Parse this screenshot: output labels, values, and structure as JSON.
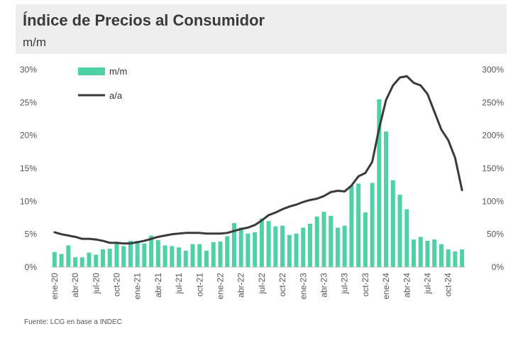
{
  "header": {
    "title": "Índice de Precios al Consumidor",
    "subtitle": "m/m"
  },
  "footer": {
    "source": "Fuente: LCG en base a INDEC"
  },
  "colors": {
    "bar": "#4fd1a5",
    "line": "#3a3a3a",
    "header_bg": "#eeeeee"
  },
  "chart_data": {
    "type": "bar+line",
    "title": "Índice de Precios al Consumidor",
    "subtitle": "m/m",
    "categories": [
      "ene-20",
      "feb-20",
      "mar-20",
      "abr-20",
      "may-20",
      "jun-20",
      "jul-20",
      "ago-20",
      "sep-20",
      "oct-20",
      "nov-20",
      "dic-20",
      "ene-21",
      "feb-21",
      "mar-21",
      "abr-21",
      "may-21",
      "jun-21",
      "jul-21",
      "ago-21",
      "sep-21",
      "oct-21",
      "nov-21",
      "dic-21",
      "ene-22",
      "feb-22",
      "mar-22",
      "abr-22",
      "may-22",
      "jun-22",
      "jul-22",
      "ago-22",
      "sep-22",
      "oct-22",
      "nov-22",
      "dic-22",
      "ene-23",
      "feb-23",
      "mar-23",
      "abr-23",
      "may-23",
      "jun-23",
      "jul-23",
      "ago-23",
      "sep-23",
      "oct-23",
      "nov-23",
      "dic-23",
      "ene-24",
      "feb-24",
      "mar-24",
      "abr-24",
      "may-24",
      "jun-24",
      "jul-24",
      "ago-24",
      "sep-24",
      "oct-24",
      "nov-24",
      "dic-24"
    ],
    "tick_labels": [
      "ene-20",
      "abr-20",
      "jul-20",
      "oct-20",
      "ene-21",
      "abr-21",
      "jul-21",
      "oct-21",
      "ene-22",
      "abr-22",
      "jul-22",
      "oct-22",
      "ene-23",
      "abr-23",
      "jul-23",
      "oct-23",
      "ene-24",
      "abr-24",
      "jul-24",
      "oct-24"
    ],
    "series": [
      {
        "name": "m/m",
        "type": "bar",
        "axis": "left",
        "values": [
          2.3,
          2.0,
          3.3,
          1.5,
          1.5,
          2.2,
          1.9,
          2.7,
          2.8,
          3.8,
          3.2,
          4.0,
          4.0,
          3.6,
          4.8,
          4.1,
          3.3,
          3.2,
          3.0,
          2.5,
          3.5,
          3.5,
          2.5,
          3.8,
          3.9,
          4.7,
          6.7,
          6.0,
          5.1,
          5.3,
          7.4,
          7.0,
          6.2,
          6.3,
          4.9,
          5.1,
          6.0,
          6.6,
          7.7,
          8.4,
          7.8,
          6.0,
          6.3,
          12.4,
          12.7,
          8.3,
          12.8,
          25.5,
          20.6,
          13.2,
          11.0,
          8.8,
          4.2,
          4.6,
          4.0,
          4.2,
          3.5,
          2.7,
          2.4,
          2.7
        ]
      },
      {
        "name": "a/a",
        "type": "line",
        "axis": "right",
        "values": [
          53,
          50,
          48,
          46,
          43,
          43,
          42,
          40,
          37,
          37,
          36,
          36,
          38,
          40,
          43,
          46,
          48,
          50,
          51,
          52,
          52,
          52,
          51,
          51,
          51,
          52,
          55,
          58,
          60,
          64,
          71,
          79,
          83,
          88,
          92,
          95,
          99,
          102,
          104,
          108,
          114,
          116,
          115,
          124,
          138,
          143,
          160,
          211,
          254,
          276,
          288,
          290,
          280,
          276,
          263,
          236,
          209,
          193,
          166,
          117
        ]
      }
    ],
    "y_left": {
      "min": 0,
      "max": 30,
      "ticks": [
        "0%",
        "5%",
        "10%",
        "15%",
        "20%",
        "25%",
        "30%"
      ]
    },
    "y_right": {
      "min": 0,
      "max": 300,
      "ticks": [
        "0%",
        "50%",
        "100%",
        "150%",
        "200%",
        "250%",
        "300%"
      ]
    },
    "legend": [
      {
        "label": "m/m",
        "type": "bar"
      },
      {
        "label": "a/a",
        "type": "line"
      }
    ],
    "legend_position": "top-left"
  }
}
